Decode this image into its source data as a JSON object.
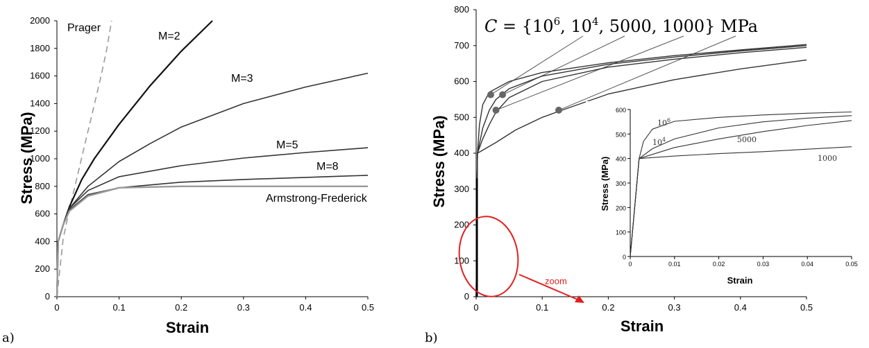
{
  "chart_data": [
    {
      "panel": "a)",
      "type": "line",
      "xlabel": "Strain",
      "ylabel": "Stress (MPa)",
      "xlim": [
        0,
        0.5
      ],
      "ylim": [
        0,
        2000
      ],
      "xticks": [
        "0",
        "0.1",
        "0.2",
        "0.3",
        "0.4",
        "0.5"
      ],
      "yticks": [
        "0",
        "200",
        "400",
        "600",
        "800",
        "1000",
        "1200",
        "1400",
        "1600",
        "1800",
        "2000"
      ],
      "series": [
        {
          "name": "Prager",
          "style": "dashed",
          "color": "#999999",
          "x": [
            0,
            0.01,
            0.02,
            0.03,
            0.04,
            0.05,
            0.06,
            0.07,
            0.08,
            0.088
          ],
          "y": [
            0,
            420,
            630,
            820,
            1010,
            1200,
            1390,
            1580,
            1790,
            2000
          ]
        },
        {
          "name": "M=2",
          "color": "#111111",
          "x": [
            0,
            0.002,
            0.01,
            0.02,
            0.04,
            0.06,
            0.1,
            0.15,
            0.2,
            0.25
          ],
          "y": [
            0,
            400,
            520,
            650,
            850,
            1000,
            1250,
            1530,
            1780,
            2000
          ]
        },
        {
          "name": "M=3",
          "color": "#333333",
          "x": [
            0,
            0.002,
            0.01,
            0.02,
            0.05,
            0.1,
            0.15,
            0.2,
            0.3,
            0.4,
            0.5
          ],
          "y": [
            0,
            400,
            520,
            640,
            800,
            980,
            1110,
            1230,
            1400,
            1520,
            1620
          ]
        },
        {
          "name": "M=5",
          "color": "#333333",
          "x": [
            0,
            0.002,
            0.01,
            0.02,
            0.05,
            0.1,
            0.2,
            0.3,
            0.4,
            0.5
          ],
          "y": [
            0,
            400,
            520,
            640,
            770,
            870,
            950,
            1005,
            1045,
            1080
          ]
        },
        {
          "name": "M=8",
          "color": "#333333",
          "x": [
            0,
            0.002,
            0.01,
            0.02,
            0.05,
            0.1,
            0.2,
            0.3,
            0.4,
            0.5
          ],
          "y": [
            0,
            400,
            520,
            630,
            740,
            790,
            830,
            850,
            865,
            880
          ]
        },
        {
          "name": "Armstrong-Frederick",
          "color": "#999999",
          "x": [
            0,
            0.002,
            0.01,
            0.02,
            0.05,
            0.1,
            0.2,
            0.3,
            0.4,
            0.5
          ],
          "y": [
            0,
            400,
            520,
            620,
            730,
            790,
            800,
            800,
            800,
            800
          ]
        }
      ]
    },
    {
      "panel": "b)",
      "type": "line",
      "xlabel": "Strain",
      "ylabel": "Stress (MPa)",
      "xlim": [
        0,
        0.5
      ],
      "ylim": [
        0,
        800
      ],
      "xticks": [
        "0",
        "0.1",
        "0.2",
        "0.3",
        "0.4",
        "0.5"
      ],
      "yticks": [
        "0",
        "100",
        "200",
        "300",
        "400",
        "500",
        "600",
        "700",
        "800"
      ],
      "formula_parts": {
        "lead": "C = {10",
        "e1": "6",
        "mid": ", 10",
        "e2": "4",
        "tail": ", 5000, 1000}  MPa"
      },
      "annotation": "zoom",
      "series": [
        {
          "name": "C = 10^6",
          "x": [
            0,
            0.002,
            0.005,
            0.01,
            0.02,
            0.05,
            0.1,
            0.2,
            0.3,
            0.4,
            0.5
          ],
          "y": [
            0,
            400,
            480,
            535,
            570,
            600,
            625,
            652,
            672,
            688,
            703
          ]
        },
        {
          "name": "C = 10^4",
          "x": [
            0,
            0.002,
            0.01,
            0.02,
            0.03,
            0.05,
            0.1,
            0.2,
            0.3,
            0.4,
            0.5
          ],
          "y": [
            0,
            400,
            470,
            520,
            550,
            580,
            615,
            648,
            668,
            685,
            700
          ]
        },
        {
          "name": "C = 5000",
          "x": [
            0,
            0.002,
            0.01,
            0.02,
            0.03,
            0.05,
            0.1,
            0.2,
            0.3,
            0.4,
            0.5
          ],
          "y": [
            0,
            400,
            440,
            480,
            515,
            555,
            600,
            640,
            662,
            680,
            695
          ]
        },
        {
          "name": "C = 1000",
          "x": [
            0,
            0.002,
            0.03,
            0.06,
            0.1,
            0.13,
            0.2,
            0.3,
            0.4,
            0.5
          ],
          "y": [
            0,
            400,
            430,
            465,
            500,
            520,
            565,
            605,
            635,
            660
          ]
        }
      ],
      "markers": [
        {
          "x": 0.022,
          "y": 563
        },
        {
          "x": 0.04,
          "y": 563
        },
        {
          "x": 0.03,
          "y": 520
        },
        {
          "x": 0.125,
          "y": 520
        }
      ],
      "inset": {
        "xlabel": "Strain",
        "ylabel": "Stress (MPa)",
        "xlim": [
          0,
          0.05
        ],
        "ylim": [
          0,
          600
        ],
        "xticks": [
          "0",
          "0.01",
          "0.02",
          "0.03",
          "0.04",
          "0.05"
        ],
        "yticks": [
          "0",
          "100",
          "200",
          "300",
          "400",
          "500",
          "600"
        ],
        "labels": {
          "c1": "10",
          "c1_exp": "6",
          "c2": "10",
          "c2_exp": "4",
          "c3": "5000",
          "c4": "1000"
        },
        "series": [
          {
            "name": "C = 10^6",
            "x": [
              0,
              0.002,
              0.003,
              0.005,
              0.01,
              0.02,
              0.03,
              0.04,
              0.05
            ],
            "y": [
              0,
              400,
              470,
              520,
              552,
              568,
              578,
              585,
              590
            ]
          },
          {
            "name": "C = 10^4",
            "x": [
              0,
              0.002,
              0.005,
              0.01,
              0.02,
              0.03,
              0.04,
              0.05
            ],
            "y": [
              0,
              400,
              440,
              480,
              525,
              550,
              565,
              575
            ]
          },
          {
            "name": "C = 5000",
            "x": [
              0,
              0.002,
              0.01,
              0.02,
              0.03,
              0.04,
              0.05
            ],
            "y": [
              0,
              400,
              445,
              480,
              510,
              535,
              555
            ]
          },
          {
            "name": "C = 1000",
            "x": [
              0,
              0.002,
              0.01,
              0.02,
              0.03,
              0.04,
              0.05
            ],
            "y": [
              0,
              400,
              410,
              420,
              428,
              438,
              448
            ]
          }
        ]
      }
    }
  ]
}
